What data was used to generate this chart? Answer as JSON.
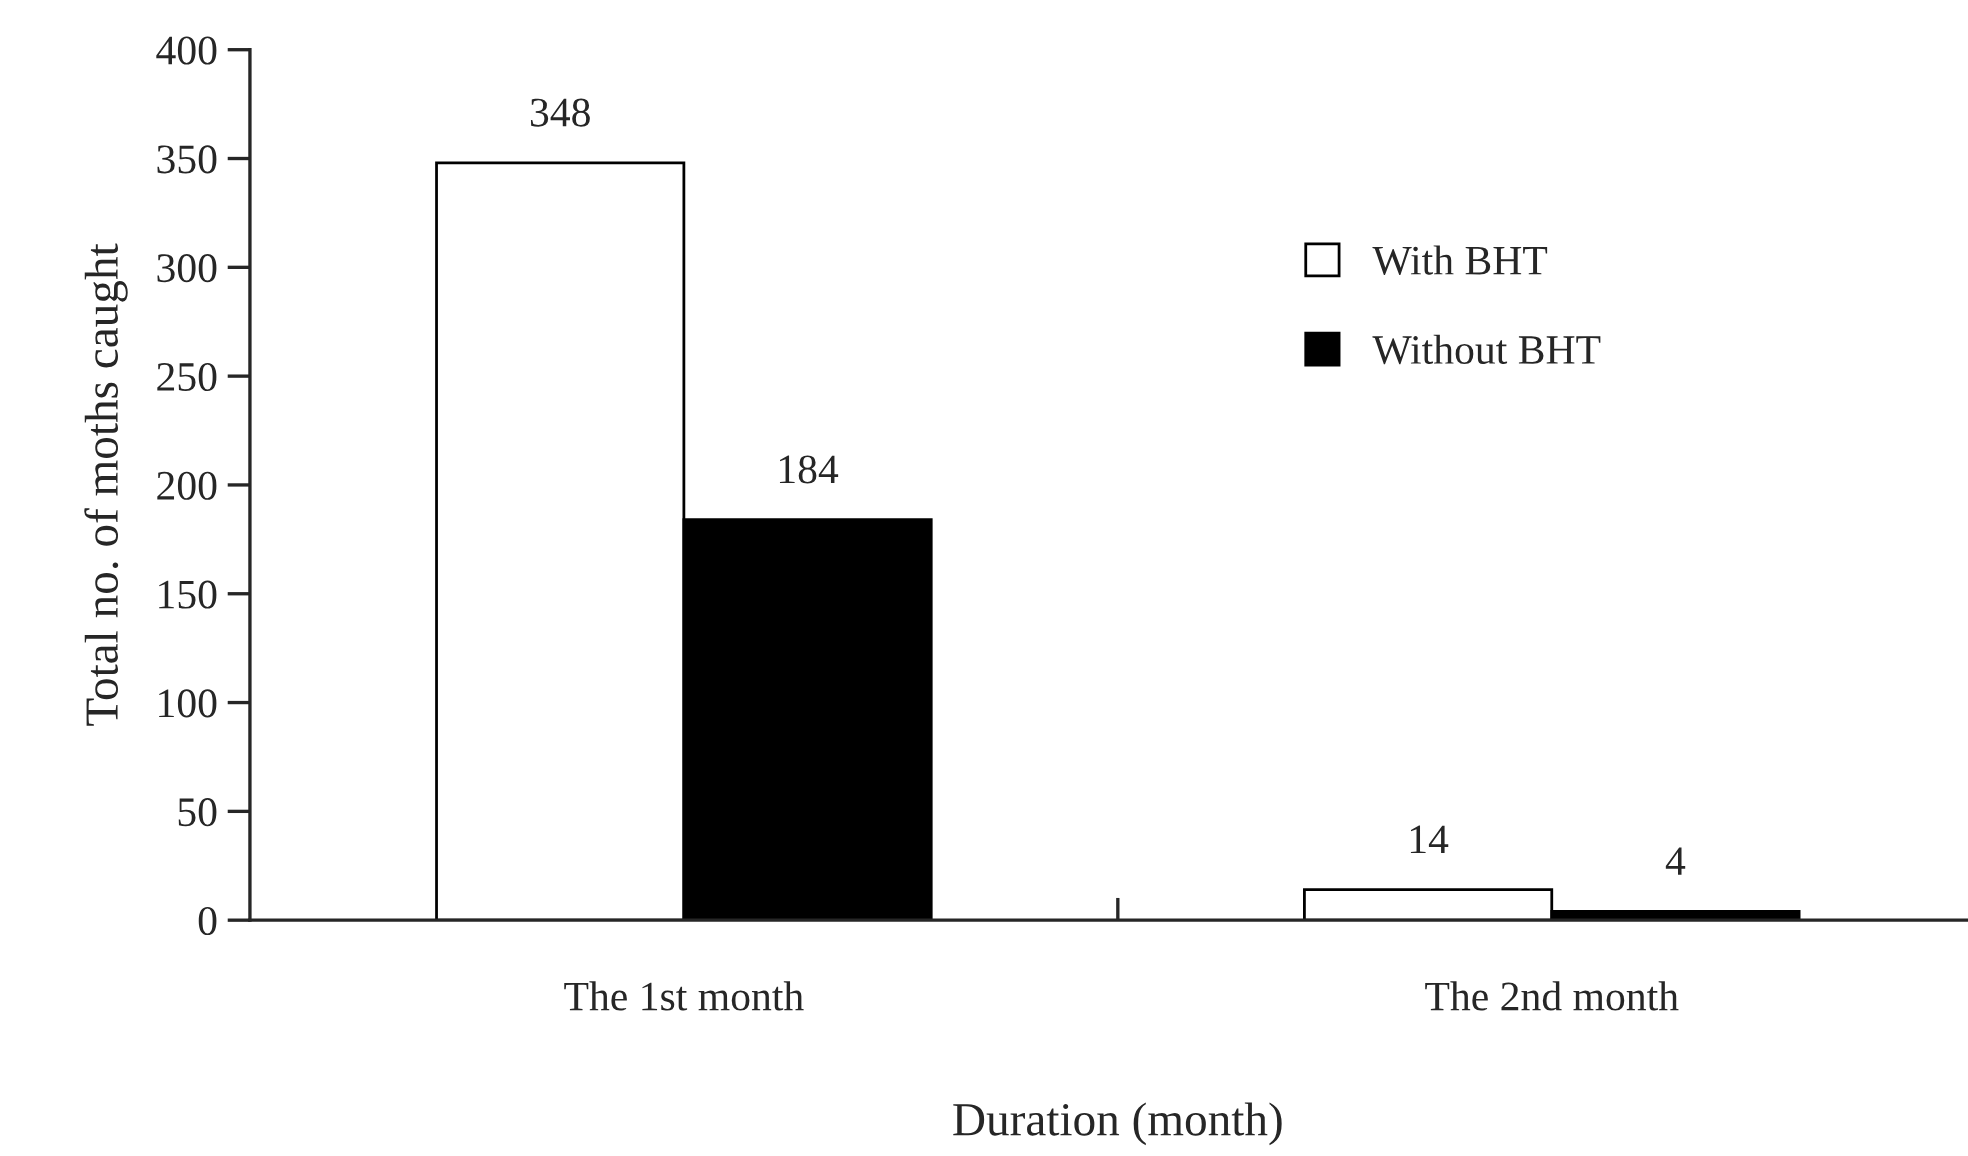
{
  "chart_data": {
    "type": "bar",
    "xlabel": "Duration (month)",
    "ylabel": "Total no. of moths caught",
    "categories": [
      "The 1st month",
      "The 2nd month"
    ],
    "series": [
      {
        "name": "With BHT",
        "color": "#ffffff",
        "values": [
          348,
          14
        ]
      },
      {
        "name": "Without BHT",
        "color": "#000000",
        "values": [
          184,
          4
        ]
      }
    ],
    "ylim": [
      0,
      400
    ],
    "yticks": [
      0,
      50,
      100,
      150,
      200,
      250,
      300,
      350,
      400
    ],
    "data_labels": true,
    "legend": "top right",
    "grid": false
  }
}
